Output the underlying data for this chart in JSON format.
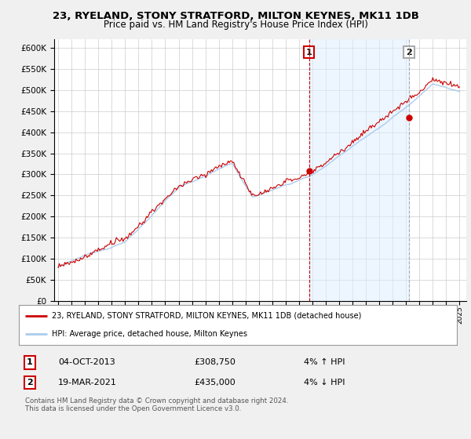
{
  "title": "23, RYELAND, STONY STRATFORD, MILTON KEYNES, MK11 1DB",
  "subtitle": "Price paid vs. HM Land Registry's House Price Index (HPI)",
  "hpi_color": "#aaccee",
  "hpi_fill_color": "#ddeeff",
  "price_color": "#cc0000",
  "vline1_color": "#cc0000",
  "vline2_color": "#aaaaaa",
  "shade_color": "#ddeeff",
  "background_color": "#f0f0f0",
  "plot_bg_color": "#ffffff",
  "ylim_max": 620000,
  "ylim_min": 0,
  "yticks": [
    0,
    50000,
    100000,
    150000,
    200000,
    250000,
    300000,
    350000,
    400000,
    450000,
    500000,
    550000,
    600000
  ],
  "sale1_year": 2013.75,
  "sale1_price": 308750,
  "sale2_year": 2021.21,
  "sale2_price": 435000,
  "legend_line1": "23, RYELAND, STONY STRATFORD, MILTON KEYNES, MK11 1DB (detached house)",
  "legend_line2": "HPI: Average price, detached house, Milton Keynes",
  "annotation1_date": "04-OCT-2013",
  "annotation1_price": "£308,750",
  "annotation1_hpi": "4% ↑ HPI",
  "annotation2_date": "19-MAR-2021",
  "annotation2_price": "£435,000",
  "annotation2_hpi": "4% ↓ HPI",
  "footer": "Contains HM Land Registry data © Crown copyright and database right 2024.\nThis data is licensed under the Open Government Licence v3.0."
}
